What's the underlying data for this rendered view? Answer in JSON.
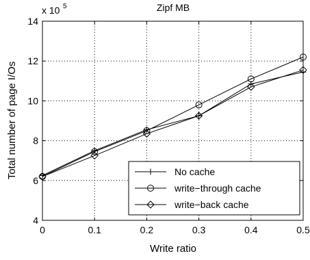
{
  "chart_data": {
    "type": "line",
    "title": "Zipf MB",
    "xlabel": "Write ratio",
    "ylabel": "Total number of page I/Os",
    "y_multiplier_base": "x 10",
    "y_multiplier_exponent": "5",
    "xlim": [
      0,
      0.5
    ],
    "ylim": [
      4,
      14
    ],
    "x_ticks": [
      0,
      0.1,
      0.2,
      0.3,
      0.4,
      0.5
    ],
    "x_tick_labels": [
      "0",
      "0.1",
      "0.2",
      "0.3",
      "0.4",
      "0.5"
    ],
    "y_ticks": [
      4,
      6,
      8,
      10,
      12,
      14
    ],
    "y_tick_labels": [
      "4",
      "6",
      "8",
      "10",
      "12",
      "14"
    ],
    "grid": true,
    "legend_position": "bottom-right",
    "x": [
      0,
      0.1,
      0.2,
      0.3,
      0.4,
      0.5
    ],
    "series": [
      {
        "name": "No cache",
        "marker": "plus",
        "values": [
          6.25,
          7.5,
          8.55,
          9.25,
          10.85,
          11.45
        ]
      },
      {
        "name": "write−through cache",
        "marker": "circle",
        "values": [
          6.2,
          7.45,
          8.5,
          9.8,
          11.1,
          12.2
        ]
      },
      {
        "name": "write−back cache",
        "marker": "diamond",
        "values": [
          6.2,
          7.25,
          8.35,
          9.25,
          10.7,
          11.55
        ]
      }
    ],
    "colors": {
      "line": "#000000",
      "grid": "#000000",
      "background": "#ffffff"
    }
  }
}
